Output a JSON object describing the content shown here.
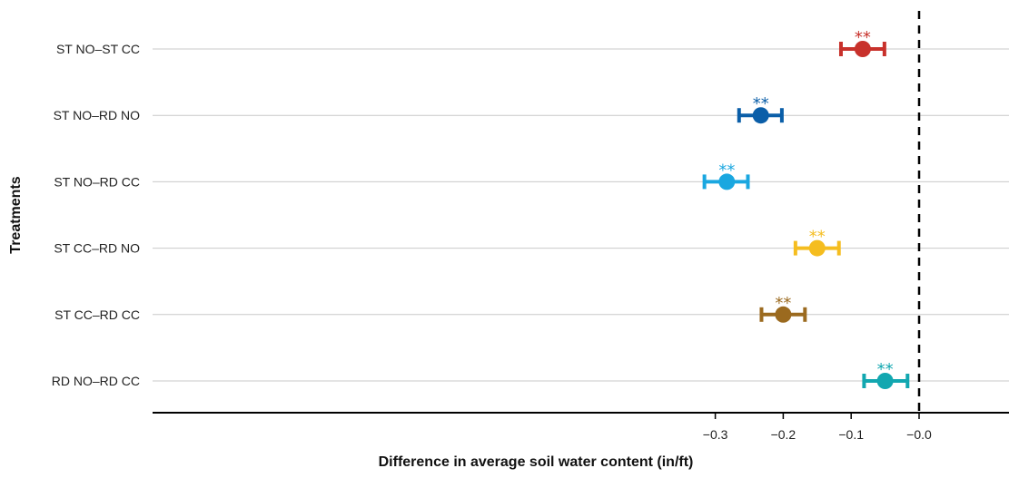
{
  "chart_data": {
    "type": "scatter",
    "subtype": "forest-plot",
    "title": "",
    "xlabel": "Difference in average soil water content (in/ft)",
    "ylabel": "Treatments",
    "xlim": [
      -0.34,
      0.04
    ],
    "xticks": [
      -0.3,
      -0.2,
      -0.1,
      0.0
    ],
    "xtick_labels": [
      "−0.3",
      "−0.2",
      "−0.1",
      "−0.0"
    ],
    "reference_line": 0.0,
    "categories": [
      "ST NO–ST CC",
      "ST NO–RD NO",
      "ST NO–RD CC",
      "ST CC–RD NO",
      "ST CC–RD CC",
      "RD NO–RD CC"
    ],
    "estimates": [
      -0.083,
      -0.233,
      -0.283,
      -0.15,
      -0.2,
      -0.05
    ],
    "ci_low": [
      -0.115,
      -0.265,
      -0.316,
      -0.182,
      -0.232,
      -0.081
    ],
    "ci_high": [
      -0.051,
      -0.202,
      -0.252,
      -0.118,
      -0.168,
      -0.017
    ],
    "significance": [
      "**",
      "**",
      "**",
      "**",
      "**",
      "**"
    ],
    "colors": [
      "#c8312b",
      "#0a5ea8",
      "#1aa7e0",
      "#f5bd1f",
      "#9b6a1f",
      "#12a7b0"
    ],
    "grid": "horizontal"
  }
}
